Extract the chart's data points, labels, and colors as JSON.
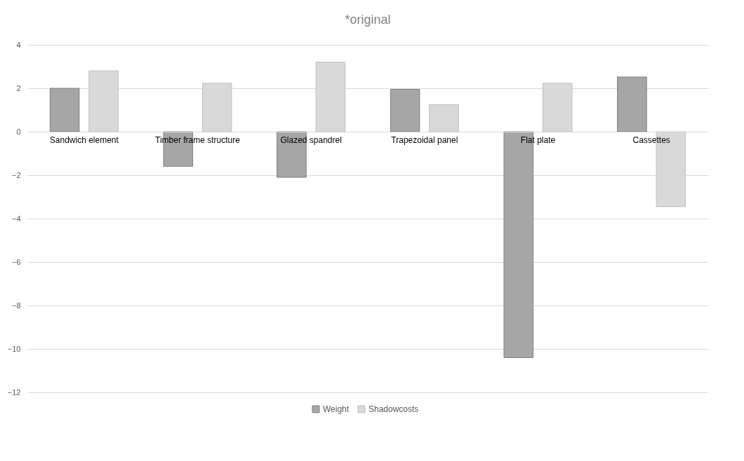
{
  "chart_data": {
    "type": "bar",
    "title": "*original",
    "categories": [
      "Sandwich element",
      "Timber frame structure",
      "Glazed spandrel",
      "Trapezoidal panel",
      "Flat plate",
      "Cassettes"
    ],
    "series": [
      {
        "name": "Weight",
        "color": "#a6a6a6",
        "values": [
          2.0,
          -1.6,
          -2.1,
          1.95,
          -10.4,
          2.52
        ]
      },
      {
        "name": "Shadowcosts",
        "color": "#d9d9d9",
        "values": [
          2.8,
          2.23,
          3.2,
          1.25,
          2.23,
          -3.45
        ]
      }
    ],
    "ylim": [
      -12,
      4
    ],
    "yticks": [
      -12,
      -10,
      -8,
      -6,
      -4,
      -2,
      0,
      2,
      4
    ],
    "grid": "y",
    "legend": "bottom"
  }
}
